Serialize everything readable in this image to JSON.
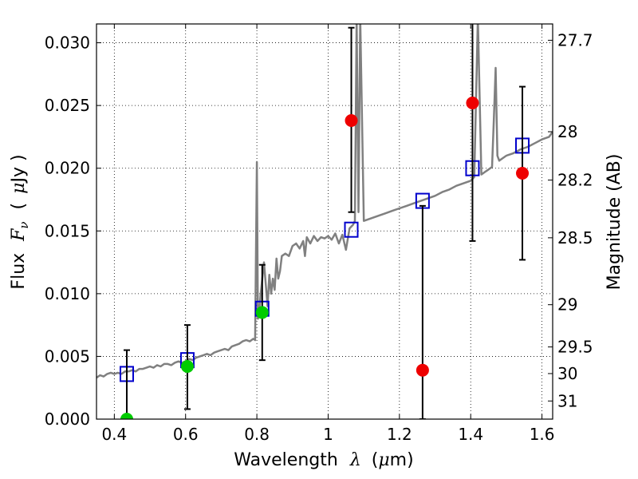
{
  "chart_data": {
    "type": "scatter",
    "title": "",
    "xlabel": "Wavelength",
    "xlabel_symbol": "λ",
    "xlabel_unit_open": "(",
    "xlabel_unit_mu": "μ",
    "xlabel_unit_rest": "m)",
    "ylabel": "Flux",
    "ylabel_symbol": "F",
    "ylabel_symbol_sub": "ν",
    "ylabel_unit_open": "(",
    "ylabel_unit_mu": "μ",
    "ylabel_unit_rest": "Jy )",
    "y2label": "Magnitude (AB)",
    "xlim": [
      0.35,
      1.63
    ],
    "ylim": [
      0.0,
      0.0315
    ],
    "grid": true,
    "grid_style": "dotted",
    "xticks": [
      {
        "value": 0.4,
        "label": "0.4"
      },
      {
        "value": 0.6,
        "label": "0.6"
      },
      {
        "value": 0.8,
        "label": "0.8"
      },
      {
        "value": 1.0,
        "label": "1"
      },
      {
        "value": 1.2,
        "label": "1.2"
      },
      {
        "value": 1.4,
        "label": "1.4"
      },
      {
        "value": 1.6,
        "label": "1.6"
      }
    ],
    "yticks": [
      {
        "value": 0.0,
        "label": "0.000"
      },
      {
        "value": 0.005,
        "label": "0.005"
      },
      {
        "value": 0.01,
        "label": "0.010"
      },
      {
        "value": 0.015,
        "label": "0.015"
      },
      {
        "value": 0.02,
        "label": "0.020"
      },
      {
        "value": 0.025,
        "label": "0.025"
      },
      {
        "value": 0.03,
        "label": "0.030"
      }
    ],
    "y2ticks": [
      {
        "value": 27.7,
        "label": "27.7"
      },
      {
        "value": 28.0,
        "label": "28"
      },
      {
        "value": 28.2,
        "label": "28.2"
      },
      {
        "value": 28.5,
        "label": "28.5"
      },
      {
        "value": 29.0,
        "label": "29"
      },
      {
        "value": 29.5,
        "label": "29.5"
      },
      {
        "value": 30.0,
        "label": "30"
      },
      {
        "value": 31.0,
        "label": "31"
      }
    ],
    "series": [
      {
        "kind": "line",
        "color": "#808080",
        "x": [
          0.35,
          0.36,
          0.37,
          0.38,
          0.39,
          0.4,
          0.41,
          0.42,
          0.43,
          0.44,
          0.45,
          0.46,
          0.47,
          0.48,
          0.49,
          0.5,
          0.51,
          0.52,
          0.53,
          0.54,
          0.55,
          0.56,
          0.57,
          0.58,
          0.59,
          0.6,
          0.61,
          0.62,
          0.63,
          0.64,
          0.65,
          0.66,
          0.67,
          0.68,
          0.69,
          0.7,
          0.71,
          0.72,
          0.73,
          0.74,
          0.75,
          0.76,
          0.77,
          0.78,
          0.79,
          0.795,
          0.8,
          0.803,
          0.806,
          0.81,
          0.82,
          0.83,
          0.835,
          0.84,
          0.845,
          0.85,
          0.855,
          0.86,
          0.865,
          0.87,
          0.88,
          0.89,
          0.9,
          0.91,
          0.92,
          0.93,
          0.935,
          0.94,
          0.95,
          0.96,
          0.97,
          0.98,
          0.99,
          1.0,
          1.01,
          1.02,
          1.03,
          1.04,
          1.05,
          1.06,
          1.07,
          1.075,
          1.08,
          1.085,
          1.09,
          1.1,
          1.12,
          1.14,
          1.16,
          1.18,
          1.2,
          1.22,
          1.24,
          1.26,
          1.28,
          1.3,
          1.32,
          1.34,
          1.36,
          1.38,
          1.4,
          1.41,
          1.42,
          1.43,
          1.44,
          1.45,
          1.46,
          1.465,
          1.47,
          1.475,
          1.48,
          1.49,
          1.5,
          1.52,
          1.54,
          1.56,
          1.58,
          1.6,
          1.62,
          1.63
        ],
        "y": [
          0.0033,
          0.0035,
          0.0034,
          0.0036,
          0.0037,
          0.0036,
          0.0037,
          0.0036,
          0.0038,
          0.0038,
          0.0039,
          0.0038,
          0.004,
          0.004,
          0.0041,
          0.0042,
          0.0041,
          0.0043,
          0.0042,
          0.0044,
          0.0044,
          0.0043,
          0.0045,
          0.0046,
          0.0045,
          0.0046,
          0.0048,
          0.0047,
          0.0049,
          0.005,
          0.0051,
          0.0052,
          0.0051,
          0.0053,
          0.0054,
          0.0055,
          0.0056,
          0.0055,
          0.0058,
          0.0059,
          0.006,
          0.0062,
          0.0063,
          0.0062,
          0.0064,
          0.0063,
          0.0205,
          0.008,
          0.0082,
          0.0098,
          0.0125,
          0.009,
          0.0115,
          0.01,
          0.0112,
          0.0103,
          0.0128,
          0.0112,
          0.0118,
          0.013,
          0.0132,
          0.013,
          0.0138,
          0.014,
          0.0136,
          0.0142,
          0.013,
          0.0145,
          0.014,
          0.0146,
          0.0142,
          0.0145,
          0.0144,
          0.0146,
          0.0143,
          0.0148,
          0.014,
          0.0147,
          0.0135,
          0.0152,
          0.0155,
          0.0158,
          0.032,
          0.0165,
          0.032,
          0.0158,
          0.016,
          0.0162,
          0.0164,
          0.0166,
          0.0168,
          0.017,
          0.0172,
          0.0174,
          0.0176,
          0.0178,
          0.0181,
          0.0183,
          0.0186,
          0.0188,
          0.019,
          0.0193,
          0.032,
          0.0195,
          0.0197,
          0.0199,
          0.0201,
          0.024,
          0.028,
          0.021,
          0.0206,
          0.0208,
          0.021,
          0.0212,
          0.0215,
          0.0217,
          0.022,
          0.0223,
          0.0225,
          0.0229
        ]
      },
      {
        "kind": "marker",
        "name": "",
        "marker": "square-open",
        "color": "#0000cc",
        "x": [
          0.435,
          0.605,
          0.815,
          1.065,
          1.265,
          1.405,
          1.545
        ],
        "y": [
          0.0036,
          0.0047,
          0.0088,
          0.0151,
          0.0174,
          0.02,
          0.0218
        ]
      },
      {
        "kind": "marker",
        "name": "",
        "marker": "circle",
        "color": "#00cc00",
        "x": [
          0.435,
          0.605,
          0.815
        ],
        "y": [
          0.0,
          0.0042,
          0.0085
        ],
        "yerr_low": [
          null,
          0.0008,
          0.0047
        ],
        "yerr_high": [
          0.0055,
          0.0075,
          0.0123
        ]
      },
      {
        "kind": "marker",
        "name": "",
        "marker": "circle",
        "color": "#ee0000",
        "x": [
          1.065,
          1.265,
          1.405,
          1.545
        ],
        "y": [
          0.0238,
          0.0039,
          0.0252,
          0.0196
        ],
        "yerr_low": [
          0.0165,
          0.0,
          0.0142,
          0.0127
        ],
        "yerr_high": [
          0.0312,
          0.017,
          0.033,
          0.0265
        ]
      }
    ]
  }
}
